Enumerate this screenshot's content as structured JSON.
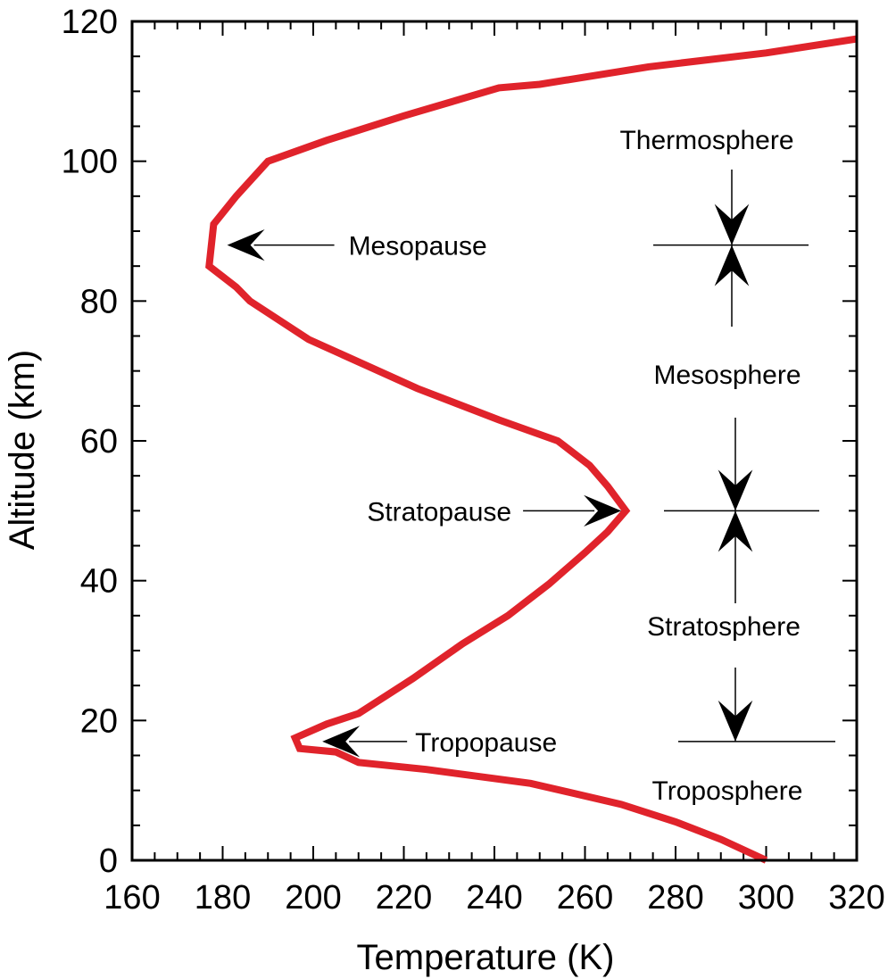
{
  "chart_data": {
    "type": "line",
    "xlabel": "Temperature (K)",
    "ylabel": "Altitude (km)",
    "xlim": [
      160,
      320
    ],
    "ylim": [
      0,
      120
    ],
    "x_ticks": [
      160,
      180,
      200,
      220,
      240,
      260,
      280,
      300,
      320
    ],
    "y_ticks": [
      0,
      20,
      40,
      60,
      80,
      100,
      120
    ],
    "line_color": "#e0232b",
    "series": [
      {
        "points": [
          [
            300,
            0
          ],
          [
            290,
            3
          ],
          [
            280,
            5.5
          ],
          [
            268,
            8
          ],
          [
            248,
            11
          ],
          [
            225,
            13
          ],
          [
            210,
            14
          ],
          [
            205,
            15.5
          ],
          [
            197,
            16
          ],
          [
            196,
            17.5
          ],
          [
            203,
            19.5
          ],
          [
            210,
            21
          ],
          [
            222,
            26
          ],
          [
            233,
            31
          ],
          [
            243,
            35
          ],
          [
            252,
            39.5
          ],
          [
            260,
            44
          ],
          [
            265,
            47
          ],
          [
            269,
            50
          ],
          [
            265,
            53.5
          ],
          [
            261,
            56.5
          ],
          [
            254,
            60
          ],
          [
            241,
            63
          ],
          [
            223,
            67.5
          ],
          [
            211,
            71
          ],
          [
            199,
            74.5
          ],
          [
            186,
            80
          ],
          [
            183,
            82
          ],
          [
            177,
            85
          ],
          [
            178,
            91
          ],
          [
            183,
            95
          ],
          [
            190,
            100
          ],
          [
            203,
            103
          ],
          [
            220,
            106.5
          ],
          [
            241,
            110.5
          ],
          [
            250,
            111
          ],
          [
            274,
            113.5
          ],
          [
            300,
            115.5
          ],
          [
            320,
            117.5
          ]
        ]
      }
    ],
    "annotations": [
      {
        "text": "Mesopause",
        "arrow_to": [
          181,
          88
        ]
      },
      {
        "text": "Stratopause",
        "arrow_to": [
          268,
          50
        ]
      },
      {
        "text": "Tropopause",
        "arrow_to": [
          202,
          17
        ]
      }
    ],
    "layers": [
      {
        "name": "Thermosphere"
      },
      {
        "name": "Mesosphere"
      },
      {
        "name": "Stratosphere"
      },
      {
        "name": "Troposphere"
      }
    ],
    "boundaries_km": [
      17,
      50,
      88
    ],
    "grid": false,
    "legend": "none"
  }
}
